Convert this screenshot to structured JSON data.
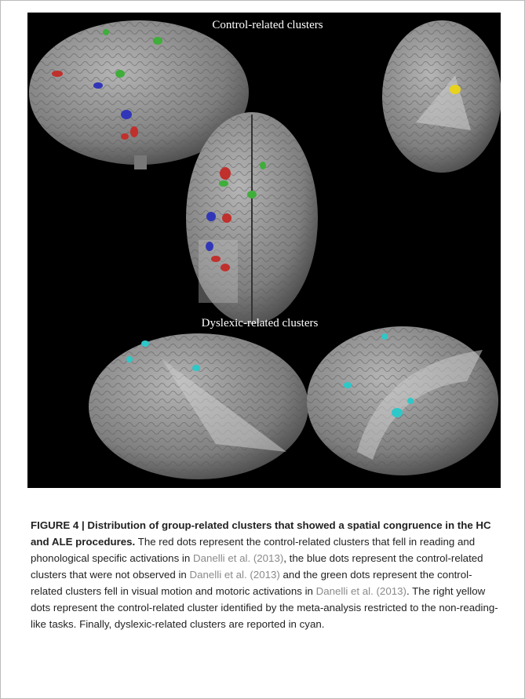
{
  "figure": {
    "labels": [
      "Control-related clusters",
      "Dyslexic-related clusters"
    ]
  },
  "caption": {
    "title": "FIGURE 4 | Distribution of group-related clusters that showed a spatial congruence in the HC and ALE procedures.",
    "text": [
      " The red dots represent the control-related clusters that fell in reading and phonological specific activations in ",
      "Danelli et al. (2013)",
      ", the blue dots represent the control-related clusters that were not observed in ",
      "Danelli et al. (2013)",
      " and the green dots represent the control-related clusters fell in visual motion and motoric activations in ",
      "Danelli et al. (2013)",
      ". The right yellow dots represent the control-related cluster identified by the meta-analysis restricted to the non-reading-like tasks. Finally, dyslexic-related clusters are reported in cyan."
    ]
  }
}
